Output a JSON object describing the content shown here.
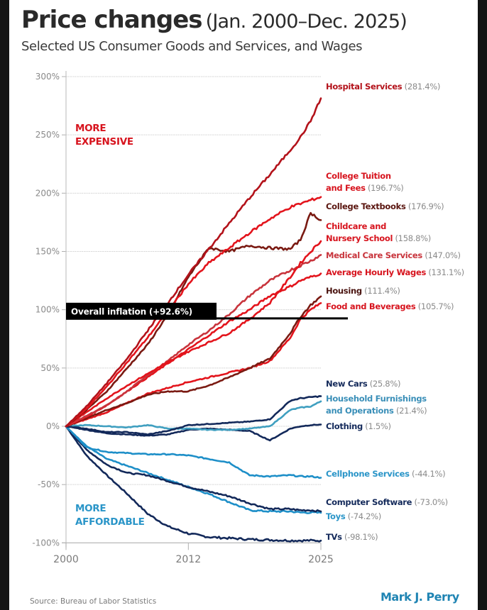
{
  "header": {
    "title_bold": "Price changes",
    "title_light": "(Jan. 2000–Dec. 2025)",
    "subtitle": "Selected US Consumer Goods and Services, and Wages"
  },
  "footer": {
    "source": "Source:  Bureau of Labor Statistics",
    "author": "Mark J. Perry"
  },
  "colors": {
    "red_bright": "#e3141c",
    "red_dark": "#b3121a",
    "red_rose": "#c8343c",
    "maroon": "#7a1a12",
    "navy": "#13295a",
    "blue_mid": "#1e8fc8",
    "blue_teal": "#3f9fc0",
    "axis_gray": "#8a8a8a",
    "grid_gray": "#d0d0d0",
    "inflation_black": "#000000",
    "author_blue": "#1f84b3"
  },
  "chart_data": {
    "type": "line",
    "title": "Price changes (Jan. 2000–Dec. 2025)",
    "subtitle": "Selected US Consumer Goods and Services, and Wages",
    "xlabel": "",
    "ylabel": "",
    "xlim": [
      2000,
      2025
    ],
    "ylim": [
      -100,
      300
    ],
    "grid": true,
    "x_ticks": [
      2000,
      2012,
      2025
    ],
    "x_tick_labels": [
      "2000",
      "2012",
      "2025"
    ],
    "y_ticks": [
      300,
      250,
      200,
      150,
      100,
      50,
      0,
      -50,
      -100
    ],
    "y_tick_labels": [
      "300%",
      "250%",
      "200%",
      "150%",
      "100%",
      "50%",
      "0%",
      "-50%",
      "-100%"
    ],
    "x": [
      2000,
      2002,
      2004,
      2006,
      2008,
      2010,
      2012,
      2014,
      2016,
      2018,
      2020,
      2022,
      2023,
      2024,
      2025
    ],
    "annotations": {
      "more_expensive": [
        "MORE",
        "EXPENSIVE"
      ],
      "more_affordable": [
        "MORE",
        "AFFORDABLE"
      ],
      "overall_inflation": {
        "label": "Overall inflation (+92.6%)",
        "value": 92.6
      }
    },
    "series": [
      {
        "name": "Hospital Services",
        "final": "(281.4%)",
        "final_value": 281.4,
        "color": "#b3121a",
        "label_color": "#b3121a",
        "label_lines": [
          "Hospital Services"
        ],
        "values": [
          0,
          17,
          37,
          58,
          82,
          106,
          130,
          152,
          174,
          196,
          216,
          237,
          248,
          262,
          281.4
        ]
      },
      {
        "name": "College Tuition and Fees",
        "final": "(196.7%)",
        "final_value": 196.7,
        "color": "#e3141c",
        "label_color": "#d7141e",
        "label_lines": [
          "College Tuition",
          "and Fees"
        ],
        "values": [
          0,
          15,
          34,
          55,
          76,
          99,
          122,
          140,
          153,
          166,
          178,
          188,
          191,
          194,
          196.7
        ]
      },
      {
        "name": "College Textbooks",
        "final": "(176.9%)",
        "final_value": 176.9,
        "color": "#7a1a12",
        "label_color": "#5a1610",
        "label_lines": [
          "College Textbooks"
        ],
        "values": [
          0,
          14,
          30,
          50,
          70,
          96,
          128,
          153,
          150,
          155,
          153,
          152,
          160,
          183,
          176.9
        ]
      },
      {
        "name": "Childcare and Nursery School",
        "final": "(158.8%)",
        "final_value": 158.8,
        "color": "#e3141c",
        "label_color": "#d7141e",
        "label_lines": [
          "Childcare and",
          "Nursery School"
        ],
        "values": [
          0,
          12,
          24,
          35,
          45,
          55,
          64,
          72,
          80,
          92,
          106,
          128,
          140,
          150,
          158.8
        ]
      },
      {
        "name": "Medical Care Services",
        "final": "(147.0%)",
        "final_value": 147.0,
        "color": "#c8343c",
        "label_color": "#c8343c",
        "label_lines": [
          "Medical Care Services"
        ],
        "values": [
          0,
          9,
          18,
          30,
          44,
          56,
          70,
          82,
          96,
          112,
          125,
          134,
          138,
          142,
          147.0
        ]
      },
      {
        "name": "Average Hourly Wages",
        "final": "(131.1%)",
        "final_value": 131.1,
        "color": "#e3141c",
        "label_color": "#d7141e",
        "label_lines": [
          "Average Hourly Wages"
        ],
        "values": [
          0,
          8,
          18,
          30,
          42,
          54,
          66,
          78,
          90,
          100,
          112,
          120,
          125,
          128,
          131.1
        ]
      },
      {
        "name": "Housing",
        "final": "(111.4%)",
        "final_value": 111.4,
        "color": "#7a1a12",
        "label_color": "#4a1410",
        "label_lines": [
          "Housing"
        ],
        "values": [
          0,
          7,
          14,
          20,
          27,
          30,
          30,
          35,
          42,
          50,
          58,
          80,
          94,
          104,
          111.4
        ]
      },
      {
        "name": "Food and Beverages",
        "final": "(105.7%)",
        "final_value": 105.7,
        "color": "#e3141c",
        "label_color": "#d7141e",
        "label_lines": [
          "Food and Beverages"
        ],
        "values": [
          0,
          6,
          12,
          20,
          28,
          33,
          38,
          42,
          46,
          50,
          56,
          76,
          92,
          100,
          105.7
        ]
      },
      {
        "name": "New Cars",
        "final": "(25.8%)",
        "final_value": 25.8,
        "color": "#13295a",
        "label_color": "#13295a",
        "label_lines": [
          "New Cars"
        ],
        "values": [
          0,
          -2,
          -5,
          -5,
          -7,
          -4,
          1,
          2,
          3,
          4,
          6,
          22,
          24,
          25,
          25.8
        ]
      },
      {
        "name": "Household Furnishings and Operations",
        "final": "(21.4%)",
        "final_value": 21.4,
        "color": "#3f9fc0",
        "label_color": "#3a8fb8",
        "label_lines": [
          "Household Furnishings",
          "and Operations"
        ],
        "values": [
          0,
          1,
          0,
          -1,
          1,
          -2,
          -2,
          -3,
          -3,
          -2,
          0,
          14,
          16,
          17,
          21.4
        ]
      },
      {
        "name": "Clothing",
        "final": "(1.5%)",
        "final_value": 1.5,
        "color": "#13295a",
        "label_color": "#13295a",
        "label_lines": [
          "Clothing"
        ],
        "values": [
          0,
          -3,
          -6,
          -7,
          -8,
          -7,
          -3,
          -2,
          -3,
          -4,
          -12,
          -2,
          0,
          1,
          1.5
        ]
      },
      {
        "name": "Cellphone Services",
        "final": "(-44.1%)",
        "final_value": -44.1,
        "color": "#1e8fc8",
        "label_color": "#2a95c8",
        "label_lines": [
          "Cellphone Services"
        ],
        "values": [
          0,
          -18,
          -22,
          -23,
          -24,
          -24,
          -25,
          -28,
          -31,
          -42,
          -43,
          -42,
          -43,
          -43,
          -44.1
        ]
      },
      {
        "name": "Computer Software",
        "final": "(-73.0%)",
        "final_value": -73.0,
        "color": "#13295a",
        "label_color": "#13295a",
        "label_lines": [
          "Computer Software"
        ],
        "values": [
          0,
          -20,
          -33,
          -40,
          -42,
          -47,
          -52,
          -56,
          -60,
          -66,
          -71,
          -71,
          -72,
          -72,
          -73.0
        ]
      },
      {
        "name": "Toys",
        "final": "(-74.2%)",
        "final_value": -74.2,
        "color": "#1e8fc8",
        "label_color": "#2a95c8",
        "label_lines": [
          "Toys"
        ],
        "values": [
          0,
          -17,
          -28,
          -34,
          -40,
          -46,
          -52,
          -58,
          -65,
          -72,
          -73,
          -73,
          -74,
          -74,
          -74.2
        ]
      },
      {
        "name": "TVs",
        "final": "(-98.1%)",
        "final_value": -98.1,
        "color": "#13295a",
        "label_color": "#13295a",
        "label_lines": [
          "TVs"
        ],
        "values": [
          0,
          -25,
          -42,
          -58,
          -75,
          -86,
          -92,
          -95,
          -96,
          -97,
          -97.5,
          -98,
          -98,
          -98,
          -98.1
        ]
      }
    ]
  }
}
